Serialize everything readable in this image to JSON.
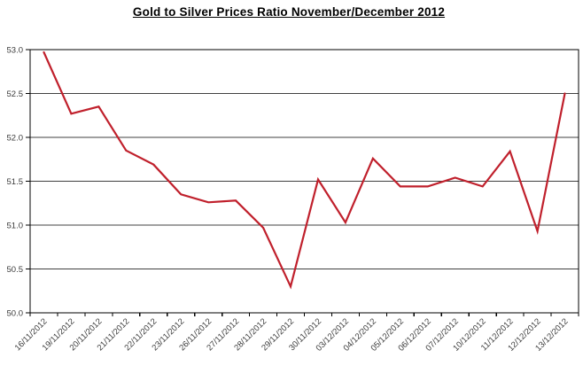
{
  "page": {
    "background": "#ffffff"
  },
  "chart_data": {
    "type": "line",
    "title": "Gold to Silver Prices Ratio November/December 2012",
    "x": [
      "16/11/2012",
      "19/11/2012",
      "20/11/2012",
      "21/11/2012",
      "22/11/2012",
      "23/11/2012",
      "26/11/2012",
      "27/11/2012",
      "28/11/2012",
      "29/11/2012",
      "30/11/2012",
      "03/12/2012",
      "04/12/2012",
      "05/12/2012",
      "06/12/2012",
      "07/12/2012",
      "10/12/2012",
      "11/12/2012",
      "12/12/2012",
      "13/12/2012"
    ],
    "values": [
      52.97,
      52.27,
      52.35,
      51.85,
      51.69,
      51.35,
      51.26,
      51.28,
      50.97,
      50.3,
      51.52,
      51.03,
      51.76,
      51.44,
      51.44,
      51.54,
      51.44,
      51.84,
      50.93,
      52.5
    ],
    "ylim": [
      50.0,
      53.0
    ],
    "y_tick_step": 0.5,
    "y_tick_labels": [
      "50.0",
      "50.5",
      "51.0",
      "51.5",
      "52.0",
      "52.5",
      "53.0"
    ],
    "grid": "horizontal",
    "legend": "none",
    "xlabel": "",
    "ylabel": "",
    "line_color": "#C0202C",
    "axis_color": "#000000",
    "gridline_color": "#404040",
    "tick_label_color": "#3b3b3b"
  }
}
